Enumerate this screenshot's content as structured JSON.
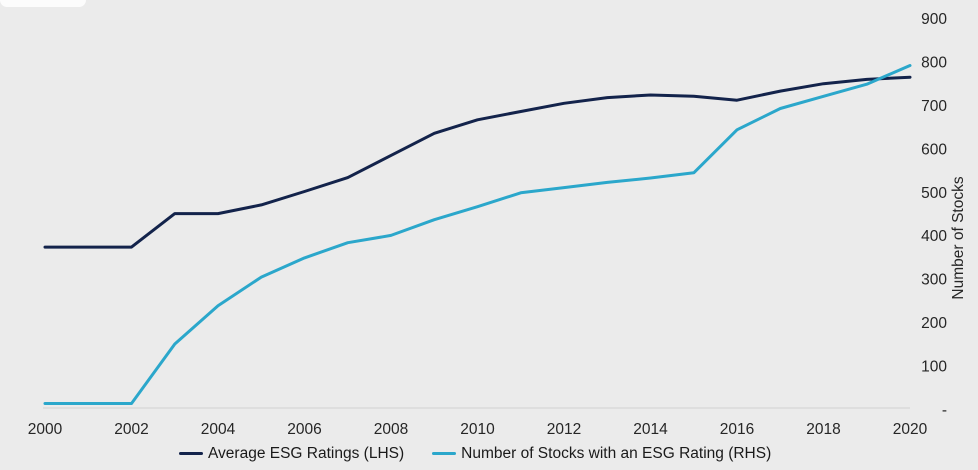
{
  "canvas": {
    "background": "#ebebeb",
    "axis_line_color": "#d9d9d9",
    "tick_text_color": "#262626"
  },
  "chart_data": {
    "type": "line",
    "title": "",
    "x": [
      2000,
      2001,
      2002,
      2003,
      2004,
      2005,
      2006,
      2007,
      2008,
      2009,
      2010,
      2011,
      2012,
      2013,
      2014,
      2015,
      2016,
      2017,
      2018,
      2019,
      2020
    ],
    "x_ticks": [
      "2000",
      "2002",
      "2004",
      "2006",
      "2008",
      "2010",
      "2012",
      "2014",
      "2016",
      "2018",
      "2020"
    ],
    "series": [
      {
        "name": "Average ESG Ratings (LHS)",
        "color": "#13234b",
        "axis": "left (scale not shown; values read against right-axis pixel scale)",
        "values": [
          375,
          375,
          375,
          452,
          452,
          472,
          503,
          535,
          586,
          637,
          668,
          687,
          706,
          719,
          725,
          722,
          713,
          734,
          751,
          761,
          766
        ]
      },
      {
        "name": "Number of Stocks with an ESG Rating (RHS)",
        "color": "#2ba7cb",
        "axis": "right",
        "values": [
          15,
          15,
          15,
          152,
          240,
          306,
          350,
          385,
          402,
          438,
          468,
          500,
          512,
          524,
          534,
          546,
          645,
          694,
          722,
          750,
          793
        ]
      }
    ],
    "y_axis_right": {
      "label": "Number of Stocks",
      "range": [
        0,
        900
      ],
      "ticks": [
        {
          "label": "900",
          "value": 900
        },
        {
          "label": "800",
          "value": 800
        },
        {
          "label": "700",
          "value": 700
        },
        {
          "label": "600",
          "value": 600
        },
        {
          "label": "500",
          "value": 500
        },
        {
          "label": "400",
          "value": 400
        },
        {
          "label": "300",
          "value": 300
        },
        {
          "label": "200",
          "value": 200
        },
        {
          "label": "100",
          "value": 100
        },
        {
          "label": "-",
          "value": 0
        }
      ]
    },
    "y_axis_left": {
      "label": "",
      "ticks": []
    },
    "grid": false,
    "legend_position": "bottom"
  }
}
